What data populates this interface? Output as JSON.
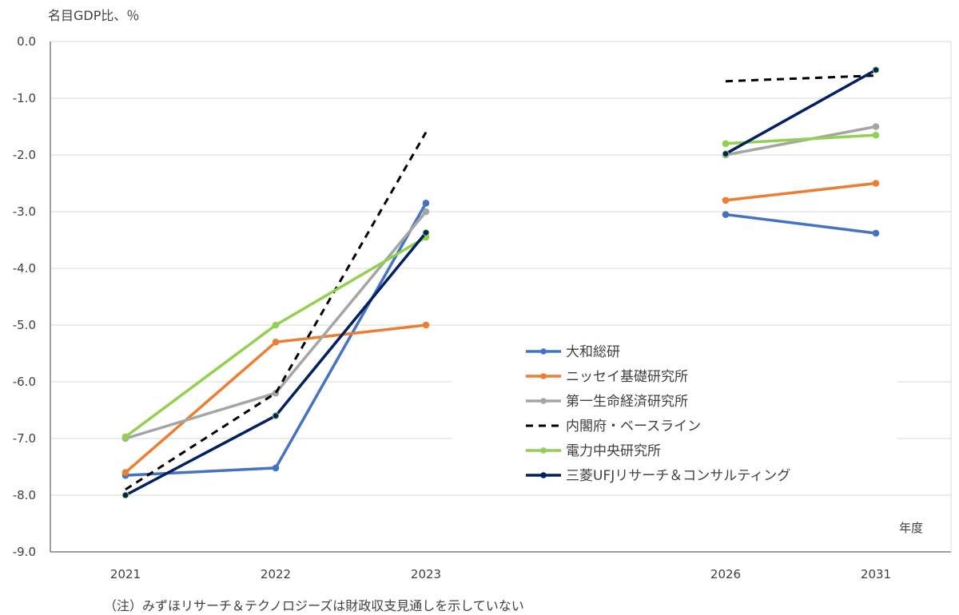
{
  "note": "（注）みずほリサーチ＆テクノロジーズは財政収支見通しを示していない",
  "chart_data": {
    "type": "line",
    "ylabel": "名目GDP比、％",
    "xlabel": "年度",
    "categories": [
      "2021",
      "2022",
      "2023",
      "2026",
      "2031"
    ],
    "ylim": [
      -9.0,
      0.0
    ],
    "yticks": [
      "0.0",
      "-1.0",
      "-2.0",
      "-3.0",
      "-4.0",
      "-5.0",
      "-6.0",
      "-7.0",
      "-8.0",
      "-9.0"
    ],
    "grid": true,
    "legend_position": "center-right",
    "series": [
      {
        "name": "大和総研",
        "color": "#4472C4",
        "dash": false,
        "values": [
          -7.65,
          -7.52,
          -2.85,
          -3.05,
          -3.38
        ]
      },
      {
        "name": "ニッセイ基礎研究所",
        "color": "#ED7D31",
        "dash": false,
        "values": [
          -7.6,
          -5.3,
          -5.0,
          -2.8,
          -2.5
        ]
      },
      {
        "name": "第一生命経済研究所",
        "color": "#A5A5A5",
        "dash": false,
        "values": [
          -7.0,
          -6.2,
          -3.0,
          -2.0,
          -1.5
        ]
      },
      {
        "name": "内閣府・ベースライン",
        "color": "#000000",
        "dash": true,
        "values": [
          -7.9,
          -6.2,
          -1.6,
          -0.7,
          -0.6
        ]
      },
      {
        "name": "電力中央研究所",
        "color": "#92D050",
        "dash": false,
        "values": [
          -6.97,
          -5.0,
          -3.45,
          -1.8,
          -1.65
        ]
      },
      {
        "name": "三菱UFJリサーチ＆コンサルティング",
        "color": "#002060",
        "dash": false,
        "values": [
          -8.0,
          -6.6,
          -3.37,
          -1.98,
          -0.5
        ]
      }
    ]
  }
}
